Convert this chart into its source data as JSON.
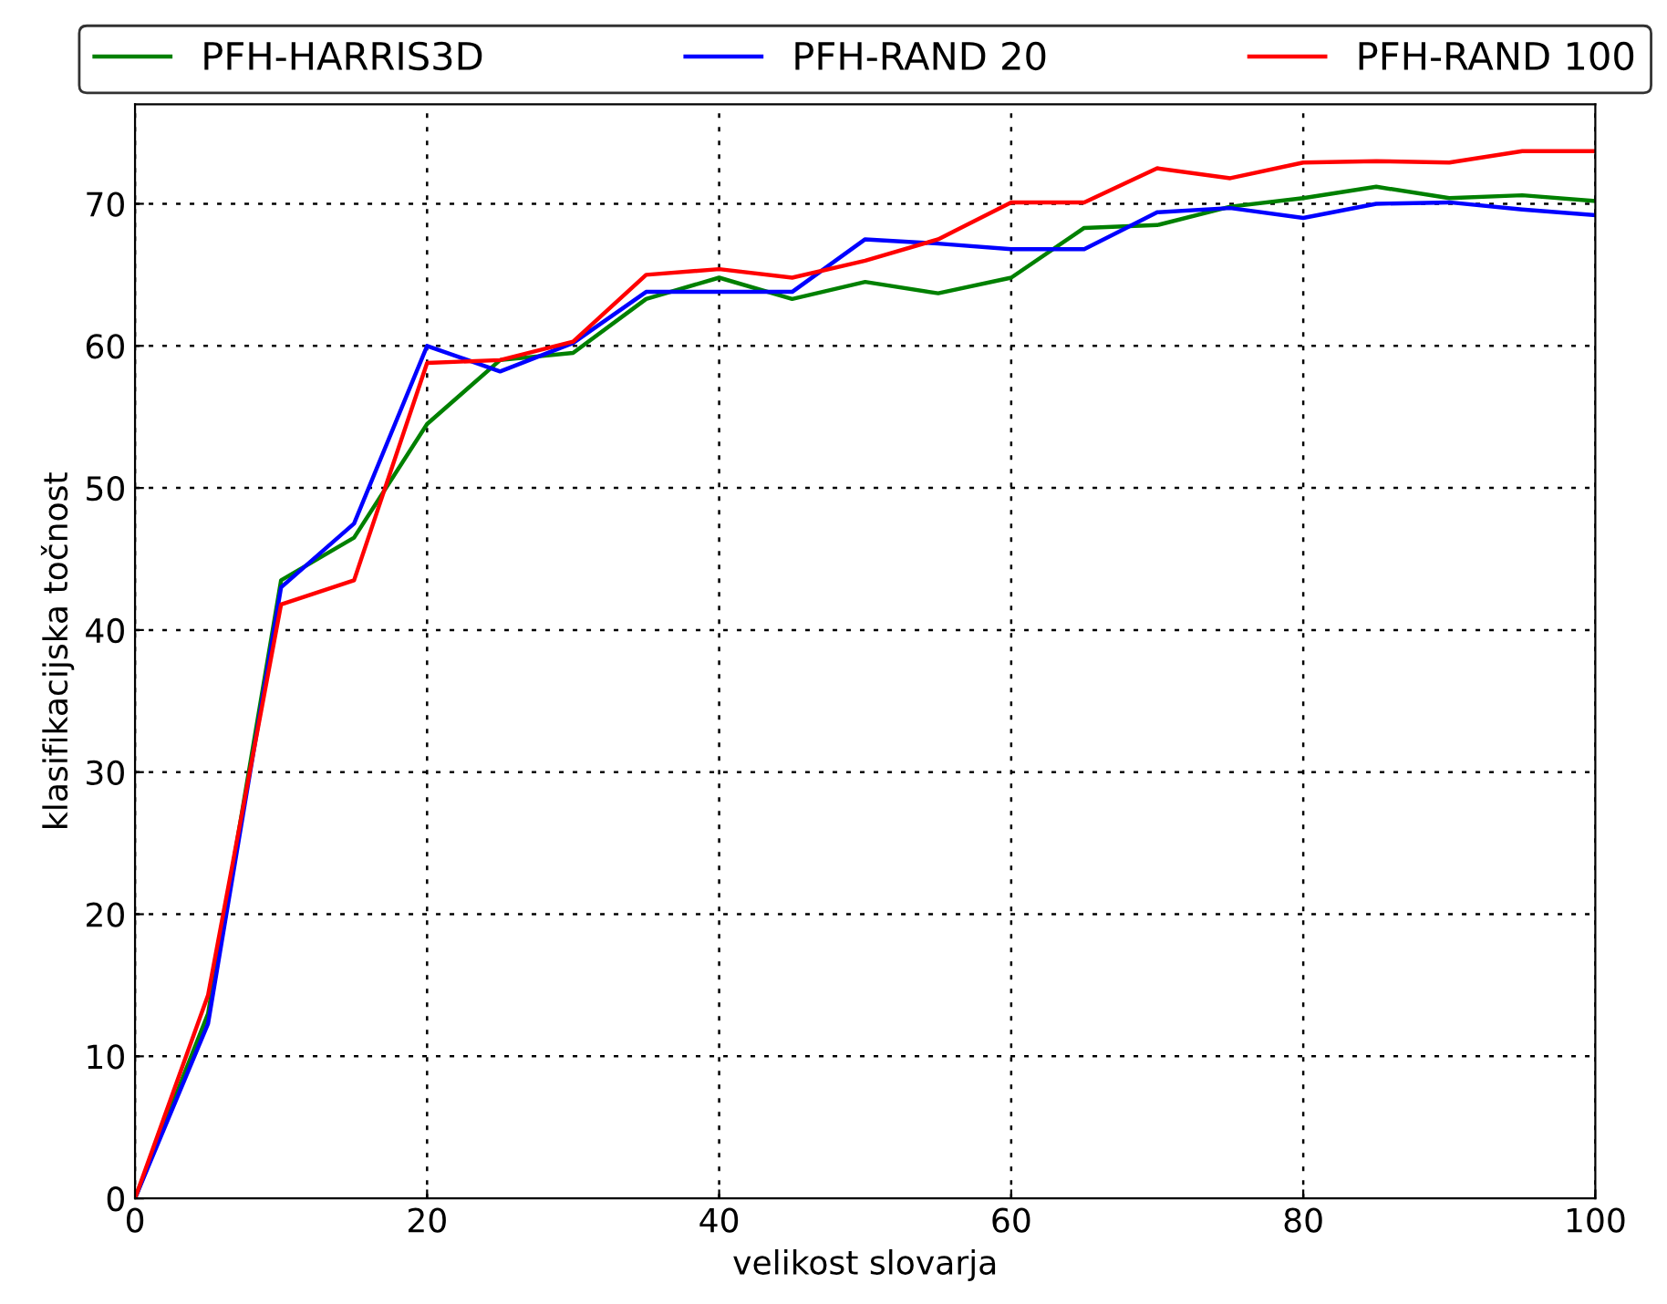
{
  "chart_data": {
    "type": "line",
    "xlabel": "velikost slovarja",
    "ylabel": "klasifikacijska točnost",
    "x": [
      0,
      5,
      10,
      15,
      20,
      25,
      30,
      35,
      40,
      45,
      50,
      55,
      60,
      65,
      70,
      75,
      80,
      85,
      90,
      95,
      100
    ],
    "xlim": [
      0,
      100
    ],
    "xticks": [
      0,
      20,
      40,
      60,
      80,
      100
    ],
    "ylim": [
      0,
      77
    ],
    "yticks": [
      0,
      10,
      20,
      30,
      40,
      50,
      60,
      70
    ],
    "grid": true,
    "legend": "top",
    "marker": "none",
    "line_style": "solid",
    "series": [
      {
        "name": "PFH-HARRIS3D",
        "color": "#008000",
        "values": [
          0,
          13,
          43.5,
          46.5,
          54.5,
          59,
          59.5,
          63.3,
          64.8,
          63.3,
          64.5,
          63.7,
          64.8,
          68.3,
          68.5,
          69.8,
          70.4,
          71.2,
          70.4,
          70.6,
          70.2
        ]
      },
      {
        "name": "PFH-RAND 20",
        "color": "#0000ff",
        "values": [
          0,
          12.3,
          43,
          47.5,
          60,
          58.2,
          60.2,
          63.8,
          63.8,
          63.8,
          67.5,
          67.2,
          66.8,
          66.8,
          69.4,
          69.7,
          69.0,
          70.0,
          70.1,
          69.6,
          69.2
        ]
      },
      {
        "name": "PFH-RAND 100",
        "color": "#ff0000",
        "values": [
          0,
          14.3,
          41.8,
          43.5,
          58.8,
          59,
          60.3,
          65,
          65.4,
          64.8,
          66.0,
          67.5,
          70.1,
          70.1,
          72.5,
          71.8,
          72.9,
          73.0,
          72.9,
          73.7,
          73.7
        ]
      }
    ]
  }
}
